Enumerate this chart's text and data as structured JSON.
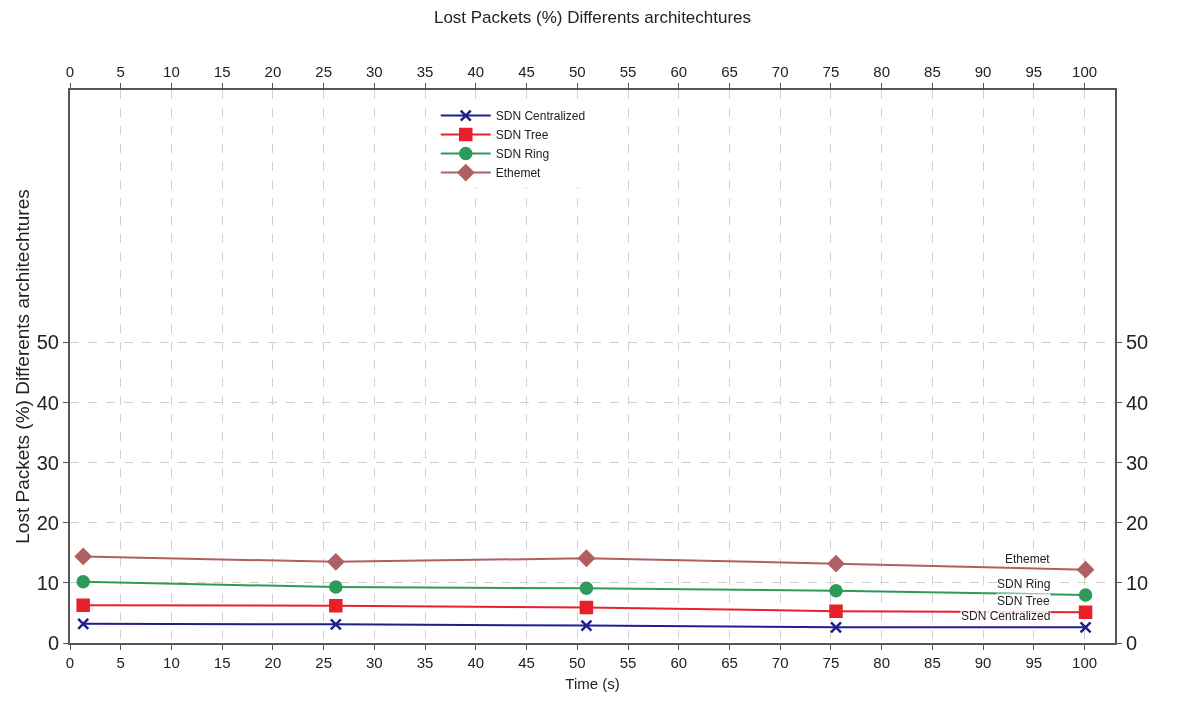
{
  "chart_data": {
    "type": "line",
    "title": "Lost Packets (%) Differents architechtures",
    "xlabel": "Time (s)",
    "ylabel": "Lost Packets (%) Differents architechtures",
    "x": [
      1.3,
      26.2,
      50.9,
      75.5,
      100.1
    ],
    "series": [
      {
        "name": "SDN Centralized",
        "color": "#1f1f8f",
        "marker": "cross",
        "values": [
          3.2,
          3.1,
          2.9,
          2.6,
          2.6
        ]
      },
      {
        "name": "SDN Tree",
        "color": "#e8202a",
        "marker": "square",
        "values": [
          6.3,
          6.2,
          5.9,
          5.3,
          5.1
        ]
      },
      {
        "name": "SDN Ring",
        "color": "#2e9a5a",
        "marker": "circle",
        "values": [
          10.2,
          9.3,
          9.1,
          8.7,
          8.0
        ]
      },
      {
        "name": "Ethemet",
        "color": "#b06060",
        "marker": "diamond",
        "values": [
          14.4,
          13.5,
          14.1,
          13.2,
          12.2
        ]
      }
    ],
    "annotations": [
      "Ethemet",
      "SDN Ring",
      "SDN Tree",
      "SDN Centralized"
    ],
    "xlim": [
      0,
      103
    ],
    "xticks": [
      0,
      5,
      10,
      15,
      20,
      25,
      30,
      35,
      40,
      45,
      50,
      55,
      60,
      65,
      70,
      75,
      80,
      85,
      90,
      95,
      100
    ],
    "x2lim": [
      0,
      103
    ],
    "x2ticks": [
      0,
      5,
      10,
      15,
      20,
      25,
      30,
      35,
      40,
      45,
      50,
      55,
      60,
      65,
      70,
      75,
      80,
      85,
      90,
      95,
      100
    ],
    "ylim": [
      0,
      92
    ],
    "yticks": [
      0,
      10,
      20,
      30,
      40,
      50
    ],
    "y2lim": [
      0,
      92
    ],
    "y2ticks": [
      0,
      10,
      20,
      30,
      40,
      50
    ],
    "grid": true,
    "legend": "top",
    "line_style": "solid"
  }
}
